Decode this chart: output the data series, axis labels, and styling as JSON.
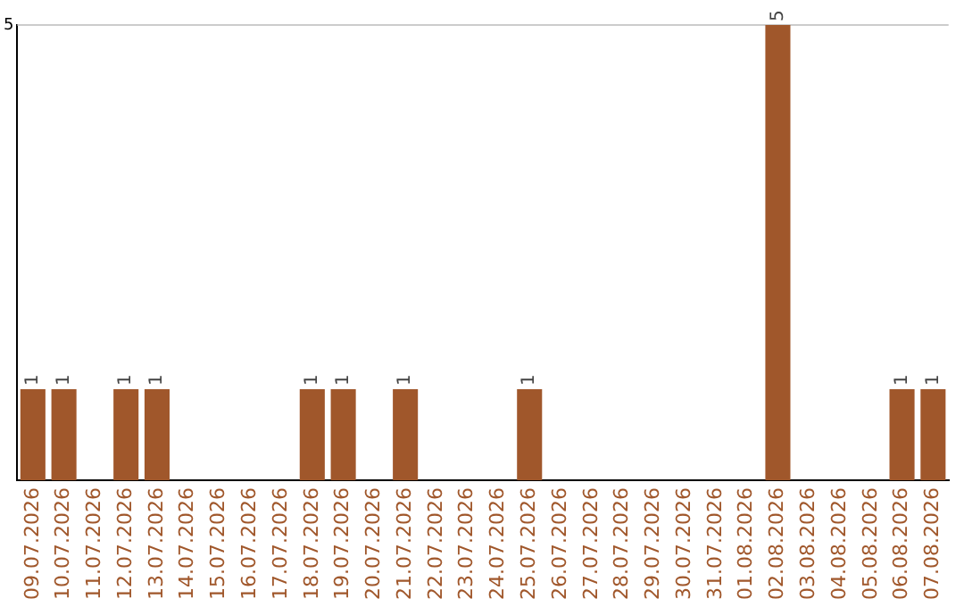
{
  "chart_data": {
    "type": "bar",
    "categories": [
      "09.07.2026",
      "10.07.2026",
      "11.07.2026",
      "12.07.2026",
      "13.07.2026",
      "14.07.2026",
      "15.07.2026",
      "16.07.2026",
      "17.07.2026",
      "18.07.2026",
      "19.07.2026",
      "20.07.2026",
      "21.07.2026",
      "22.07.2026",
      "23.07.2026",
      "24.07.2026",
      "25.07.2026",
      "26.07.2026",
      "27.07.2026",
      "28.07.2026",
      "29.07.2026",
      "30.07.2026",
      "31.07.2026",
      "01.08.2026",
      "02.08.2026",
      "03.08.2026",
      "04.08.2026",
      "05.08.2026",
      "06.08.2026",
      "07.08.2026"
    ],
    "values": [
      1,
      1,
      0,
      1,
      1,
      0,
      0,
      0,
      0,
      1,
      1,
      0,
      1,
      0,
      0,
      0,
      1,
      0,
      0,
      0,
      0,
      0,
      0,
      0,
      5,
      0,
      0,
      0,
      1,
      1
    ],
    "value_labels": [
      "1",
      "1",
      null,
      "1",
      "1",
      null,
      null,
      null,
      null,
      "1",
      "1",
      null,
      "1",
      null,
      null,
      null,
      "1",
      null,
      null,
      null,
      null,
      null,
      null,
      null,
      "5",
      null,
      null,
      null,
      "1",
      "1"
    ],
    "color": "#a0572b",
    "ylim": [
      0,
      5
    ],
    "yticks": [
      5
    ],
    "ref_lines": [
      {
        "axis": "y",
        "value": 5,
        "color": "#cccccc"
      }
    ],
    "legend": false
  }
}
